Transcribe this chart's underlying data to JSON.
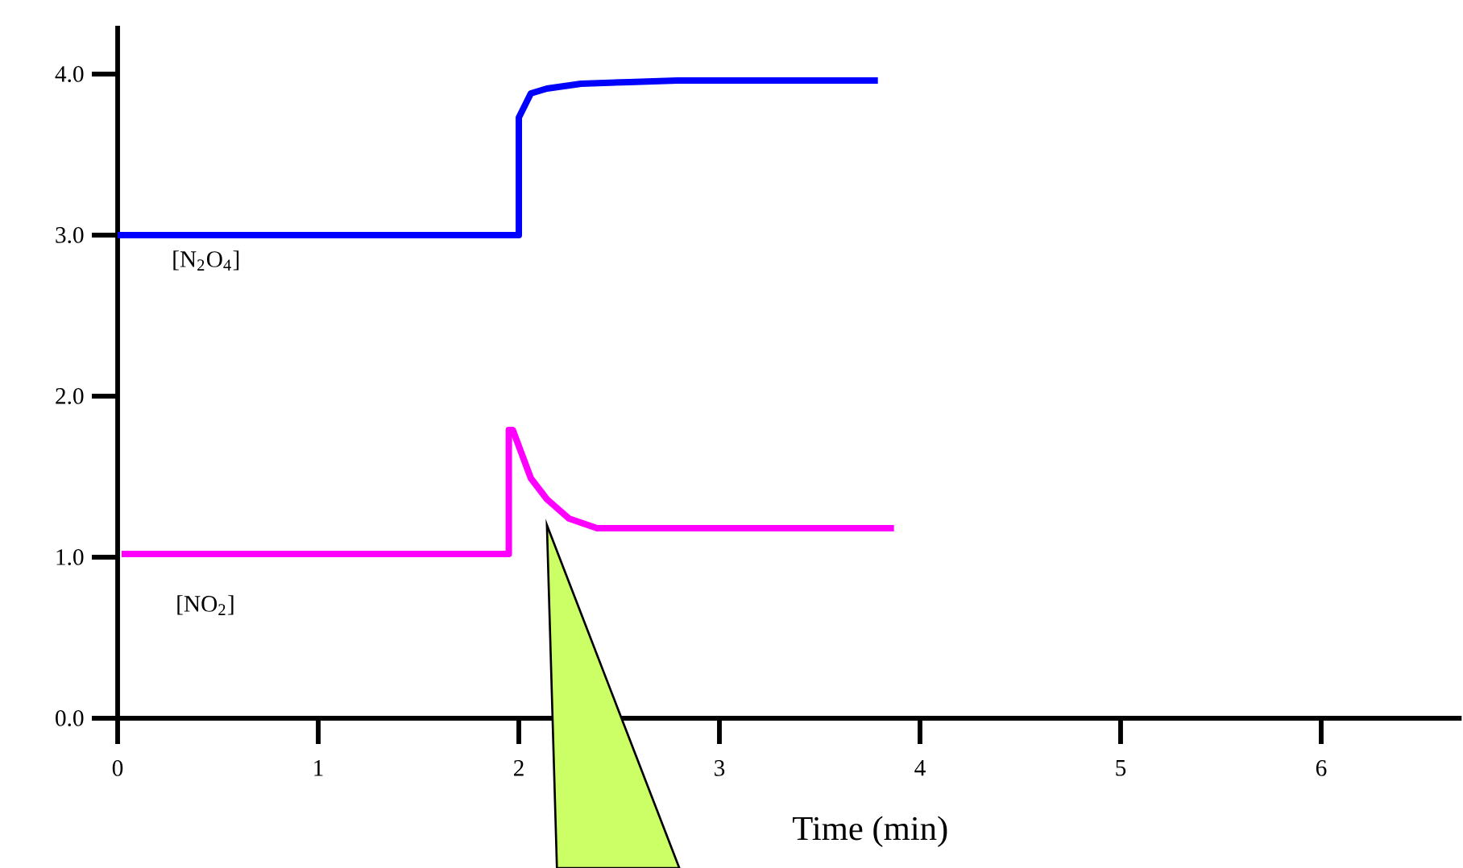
{
  "chart_data": {
    "type": "line",
    "xlabel": "Time (min)",
    "xlim": [
      0,
      6.7
    ],
    "ylim": [
      0,
      4.3
    ],
    "xticks": [
      0,
      1,
      2,
      3,
      4,
      5,
      6
    ],
    "yticks": [
      {
        "value": 0,
        "label": "0.0"
      },
      {
        "value": 1,
        "label": "1.0"
      },
      {
        "value": 2,
        "label": "2.0"
      },
      {
        "value": 3,
        "label": "3.0"
      },
      {
        "value": 4,
        "label": "4.0"
      }
    ],
    "grid": false,
    "legend": false,
    "marker": "none",
    "line_style": "solid",
    "series": [
      {
        "name": "[N$_{2}$O$_{4}$]",
        "color": "#0000ff",
        "x": [
          0,
          2.0,
          2.0,
          2.06,
          2.14,
          2.31,
          2.55,
          2.79,
          3.79
        ],
        "values": [
          3.0,
          3.0,
          3.73,
          3.88,
          3.91,
          3.94,
          3.95,
          3.96,
          3.96
        ]
      },
      {
        "name": "[NO$_{2}$]",
        "color": "#ff00ff",
        "x": [
          0.02,
          1.95,
          1.95,
          1.97,
          2.06,
          2.14,
          2.25,
          2.39,
          3.87
        ],
        "values": [
          1.02,
          1.02,
          1.79,
          1.79,
          1.49,
          1.36,
          1.24,
          1.18,
          1.18
        ]
      }
    ]
  }
}
